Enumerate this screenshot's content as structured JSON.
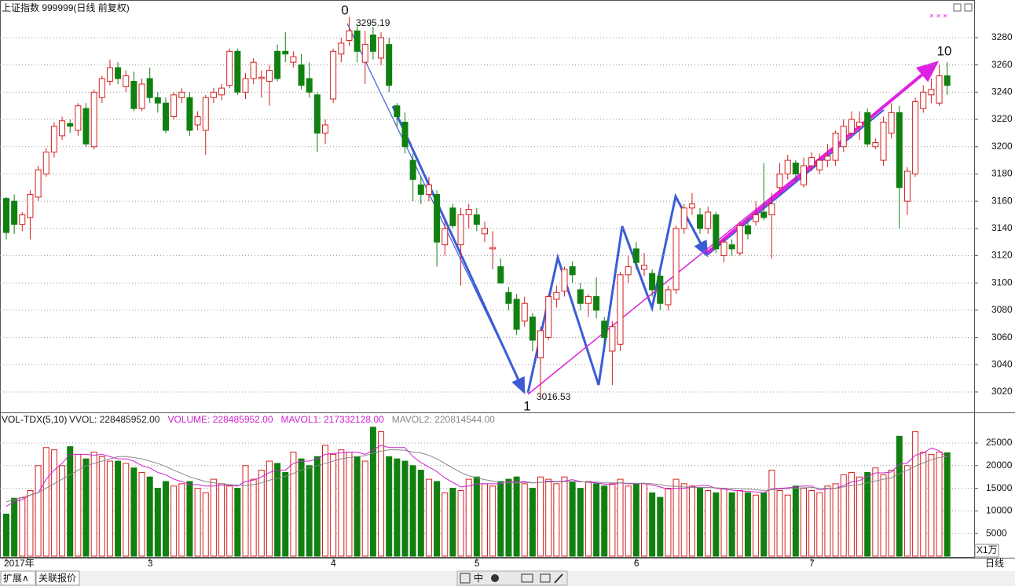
{
  "chart_data": [
    {
      "type": "candlestick",
      "title": "上证指数 999999(日线 前复权)",
      "x": [
        "2017年",
        null,
        null,
        null,
        null,
        null,
        null,
        null,
        null,
        null,
        null,
        null,
        null,
        null,
        null,
        null,
        null,
        null,
        "3",
        null,
        null,
        null,
        null,
        null,
        null,
        null,
        null,
        null,
        null,
        null,
        null,
        null,
        null,
        null,
        null,
        null,
        null,
        null,
        null,
        null,
        null,
        "4",
        null,
        null,
        null,
        null,
        null,
        null,
        null,
        null,
        null,
        null,
        null,
        null,
        null,
        null,
        null,
        null,
        null,
        "5",
        null,
        null,
        null,
        null,
        null,
        null,
        null,
        null,
        null,
        null,
        null,
        null,
        null,
        null,
        null,
        null,
        null,
        null,
        null,
        "6",
        null,
        null,
        null,
        null,
        null,
        null,
        null,
        null,
        null,
        null,
        null,
        null,
        null,
        null,
        null,
        null,
        null,
        null,
        null,
        null,
        null,
        "7",
        null,
        null,
        null,
        null,
        null,
        null,
        null,
        null,
        null,
        null,
        null,
        null,
        null,
        null,
        null,
        null,
        null
      ],
      "ohlc": [
        [
          3162,
          3163,
          3132,
          3137
        ],
        [
          3160,
          3165,
          3136,
          3143
        ],
        [
          3143,
          3152,
          3138,
          3150
        ],
        [
          3148,
          3168,
          3132,
          3165
        ],
        [
          3163,
          3186,
          3160,
          3183
        ],
        [
          3180,
          3199,
          3178,
          3196
        ],
        [
          3196,
          3218,
          3192,
          3215
        ],
        [
          3208,
          3222,
          3205,
          3219
        ],
        [
          3217,
          3220,
          3210,
          3215
        ],
        [
          3212,
          3232,
          3208,
          3230
        ],
        [
          3228,
          3232,
          3200,
          3202
        ],
        [
          3200,
          3242,
          3198,
          3240
        ],
        [
          3236,
          3252,
          3232,
          3250
        ],
        [
          3248,
          3264,
          3245,
          3258
        ],
        [
          3258,
          3262,
          3246,
          3250
        ],
        [
          3244,
          3256,
          3240,
          3252
        ],
        [
          3248,
          3255,
          3226,
          3228
        ],
        [
          3228,
          3250,
          3226,
          3246
        ],
        [
          3250,
          3258,
          3232,
          3236
        ],
        [
          3236,
          3240,
          3225,
          3232
        ],
        [
          3232,
          3236,
          3210,
          3212
        ],
        [
          3222,
          3240,
          3220,
          3238
        ],
        [
          3236,
          3243,
          3232,
          3240
        ],
        [
          3236,
          3240,
          3208,
          3212
        ],
        [
          3216,
          3226,
          3212,
          3222
        ],
        [
          3212,
          3238,
          3194,
          3236
        ],
        [
          3236,
          3243,
          3232,
          3240
        ],
        [
          3238,
          3246,
          3234,
          3243
        ],
        [
          3245,
          3272,
          3243,
          3270
        ],
        [
          3270,
          3272,
          3238,
          3240
        ],
        [
          3240,
          3254,
          3235,
          3250
        ],
        [
          3250,
          3265,
          3246,
          3262
        ],
        [
          3250,
          3256,
          3236,
          3251
        ],
        [
          3248,
          3260,
          3230,
          3256
        ],
        [
          3270,
          3275,
          3248,
          3250
        ],
        [
          3270,
          3284,
          3262,
          3268
        ],
        [
          3262,
          3270,
          3258,
          3266
        ],
        [
          3260,
          3268,
          3242,
          3245
        ],
        [
          3250,
          3262,
          3236,
          3240
        ],
        [
          3238,
          3240,
          3196,
          3210
        ],
        [
          3210,
          3220,
          3202,
          3216
        ],
        [
          3235,
          3272,
          3232,
          3270
        ],
        [
          3268,
          3280,
          3262,
          3276
        ],
        [
          3278,
          3295.19,
          3274,
          3285
        ],
        [
          3285,
          3290,
          3262,
          3270
        ],
        [
          3262,
          3285,
          3246,
          3275
        ],
        [
          3282,
          3288,
          3264,
          3270
        ],
        [
          3265,
          3284,
          3260,
          3280
        ],
        [
          3275,
          3280,
          3240,
          3245
        ],
        [
          3230,
          3232,
          3215,
          3222
        ],
        [
          3218,
          3225,
          3195,
          3200
        ],
        [
          3190,
          3195,
          3160,
          3176
        ],
        [
          3172,
          3178,
          3158,
          3165
        ],
        [
          3165,
          3178,
          3160,
          3172
        ],
        [
          3165,
          3168,
          3112,
          3130
        ],
        [
          3128,
          3145,
          3120,
          3140
        ],
        [
          3155,
          3158,
          3140,
          3142
        ],
        [
          3128,
          3155,
          3098,
          3150
        ],
        [
          3150,
          3158,
          3140,
          3154
        ],
        [
          3150,
          3155,
          3138,
          3143
        ],
        [
          3136,
          3145,
          3130,
          3140
        ],
        [
          3125,
          3138,
          3110,
          3126
        ],
        [
          3112,
          3118,
          3100,
          3100
        ],
        [
          3093,
          3097,
          3080,
          3085
        ],
        [
          3088,
          3092,
          3062,
          3066
        ],
        [
          3072,
          3090,
          3068,
          3085
        ],
        [
          3075,
          3078,
          3050,
          3058
        ],
        [
          3045,
          3068,
          3016.53,
          3065
        ],
        [
          3060,
          3092,
          3058,
          3090
        ],
        [
          3088,
          3098,
          3082,
          3093
        ],
        [
          3094,
          3112,
          3090,
          3110
        ],
        [
          3112,
          3116,
          3100,
          3106
        ],
        [
          3095,
          3100,
          3080,
          3085
        ],
        [
          3085,
          3092,
          3075,
          3090
        ],
        [
          3090,
          3104,
          3074,
          3080
        ],
        [
          3072,
          3075,
          3055,
          3060
        ],
        [
          3050,
          3072,
          3025,
          3068
        ],
        [
          3055,
          3108,
          3050,
          3106
        ],
        [
          3106,
          3120,
          3100,
          3112
        ],
        [
          3125,
          3130,
          3110,
          3115
        ],
        [
          3110,
          3122,
          3105,
          3113
        ],
        [
          3107,
          3110,
          3090,
          3095
        ],
        [
          3105,
          3108,
          3080,
          3085
        ],
        [
          3084,
          3098,
          3080,
          3095
        ],
        [
          3095,
          3142,
          3092,
          3140
        ],
        [
          3140,
          3158,
          3136,
          3155
        ],
        [
          3155,
          3166,
          3150,
          3158
        ],
        [
          3150,
          3155,
          3136,
          3140
        ],
        [
          3140,
          3156,
          3136,
          3152
        ],
        [
          3150,
          3152,
          3122,
          3125
        ],
        [
          3120,
          3133,
          3115,
          3130
        ],
        [
          3128,
          3132,
          3120,
          3125
        ],
        [
          3122,
          3145,
          3120,
          3142
        ],
        [
          3142,
          3148,
          3132,
          3136
        ],
        [
          3145,
          3160,
          3142,
          3150
        ],
        [
          3152,
          3188,
          3146,
          3148
        ],
        [
          3150,
          3166,
          3118,
          3158
        ],
        [
          3170,
          3188,
          3166,
          3180
        ],
        [
          3180,
          3194,
          3176,
          3190
        ],
        [
          3188,
          3190,
          3175,
          3180
        ],
        [
          3172,
          3192,
          3170,
          3186
        ],
        [
          3186,
          3196,
          3182,
          3192
        ],
        [
          3183,
          3195,
          3180,
          3190
        ],
        [
          3190,
          3202,
          3185,
          3193
        ],
        [
          3190,
          3212,
          3186,
          3210
        ],
        [
          3200,
          3220,
          3196,
          3215
        ],
        [
          3210,
          3226,
          3206,
          3220
        ],
        [
          3215,
          3226,
          3205,
          3218
        ],
        [
          3225,
          3228,
          3200,
          3202
        ],
        [
          3200,
          3206,
          3198,
          3203
        ],
        [
          3190,
          3222,
          3186,
          3218
        ],
        [
          3210,
          3232,
          3206,
          3225
        ],
        [
          3225,
          3230,
          3140,
          3170
        ],
        [
          3160,
          3185,
          3150,
          3182
        ],
        [
          3180,
          3236,
          3178,
          3233
        ],
        [
          3228,
          3245,
          3225,
          3240
        ],
        [
          3238,
          3250,
          3232,
          3242
        ],
        [
          3232,
          3260,
          3230,
          3252
        ],
        [
          3252,
          3262,
          3238,
          3245
        ]
      ],
      "ylim": [
        3005,
        3306.5
      ],
      "yticks": [
        3020,
        3040,
        3060,
        3080,
        3100,
        3120,
        3140,
        3160,
        3180,
        3200,
        3220,
        3240,
        3260,
        3280
      ],
      "up_color": "#d42020",
      "down_color": "#108010",
      "grid": true,
      "wave_labels": [
        "0",
        "1",
        "10"
      ],
      "price_labels": [
        3295.19,
        3016.53
      ]
    },
    {
      "type": "bar",
      "title": "VOL-TDX(5,10)",
      "readouts": [
        {
          "text": "VVOL: 228485952.00",
          "color": "#222222"
        },
        {
          "text": "VOLUME: 228485952.00",
          "color": "#d020d0"
        },
        {
          "text": "MAVOL1: 217332128.00",
          "color": "#d020d0"
        },
        {
          "text": "MAVOL2: 220814544.00",
          "color": "#888888"
        }
      ],
      "values": [
        9300,
        12800,
        12900,
        14500,
        20000,
        24000,
        23500,
        20000,
        24200,
        22500,
        21500,
        23000,
        22000,
        21000,
        21000,
        20500,
        19500,
        18500,
        17500,
        15000,
        16500,
        15500,
        16000,
        16500,
        15000,
        14000,
        17000,
        16000,
        15500,
        15000,
        20000,
        17000,
        19000,
        21000,
        20500,
        18500,
        23000,
        21500,
        20000,
        22000,
        24500,
        22500,
        23500,
        23000,
        22000,
        21000,
        28500,
        27500,
        22000,
        21500,
        21000,
        20000,
        19000,
        17000,
        16500,
        14000,
        15000,
        14500,
        17000,
        17500,
        16000,
        15500,
        16500,
        17000,
        17500,
        16000,
        15000,
        17500,
        17000,
        16000,
        17500,
        16500,
        15000,
        16500,
        16000,
        15500,
        16000,
        17000,
        15500,
        16000,
        16000,
        14000,
        13000,
        15000,
        17000,
        16000,
        15500,
        15000,
        14500,
        14000,
        15000,
        14000,
        14500,
        14000,
        13500,
        14000,
        19000,
        14500,
        13500,
        15500,
        15000,
        14500,
        14000,
        15500,
        16000,
        18000,
        18500,
        17500,
        18500,
        19500,
        18000,
        19000,
        26500,
        20000,
        27500,
        23000,
        22500,
        23000,
        22849
      ],
      "ma_lines": [
        {
          "color": "#d020d0",
          "values": [
            11000,
            12000,
            12500,
            13500,
            14000,
            17000,
            19000,
            20500,
            22500,
            22500,
            22500,
            22300,
            22500,
            22000,
            21500,
            21500,
            21000,
            20000,
            19500,
            18500,
            18000,
            17000,
            16500,
            15800,
            15800,
            15500,
            15500,
            15700,
            15700,
            15500,
            16500,
            16800,
            17500,
            18500,
            19000,
            19000,
            20500,
            21000,
            21000,
            21500,
            22500,
            22700,
            22800,
            23000,
            23000,
            22500,
            23500,
            24500,
            24000,
            24000,
            24000,
            22000,
            20700,
            19700,
            18700,
            17300,
            16300,
            15300,
            15500,
            16000,
            16000,
            16000,
            16000,
            16500,
            16500,
            16500,
            16200,
            16300,
            16600,
            16500,
            16600,
            16900,
            16500,
            16300,
            16200,
            15900,
            15800,
            16200,
            16000,
            16000,
            16100,
            15700,
            15300,
            14800,
            15000,
            15000,
            15300,
            15600,
            15600,
            15000,
            14800,
            14600,
            14400,
            14300,
            14200,
            14000,
            14900,
            15000,
            15100,
            15300,
            15500,
            15500,
            14600,
            14900,
            15000,
            15600,
            16400,
            16700,
            17600,
            18400,
            18400,
            18600,
            20300,
            20600,
            22300,
            22800,
            23900,
            23300,
            21733
          ]
        },
        {
          "color": "#888888",
          "values": [
            12000,
            12500,
            13000,
            13500,
            14000,
            15000,
            16000,
            17000,
            18000,
            19000,
            20000,
            20500,
            21000,
            21500,
            22000,
            22000,
            21800,
            21500,
            21000,
            20500,
            19800,
            19000,
            18300,
            17500,
            17000,
            16500,
            16200,
            16000,
            15800,
            15700,
            15600,
            15800,
            16200,
            16800,
            17200,
            17600,
            18300,
            19000,
            19500,
            20000,
            20500,
            21000,
            21500,
            21800,
            22000,
            22200,
            22800,
            23200,
            23500,
            23500,
            23400,
            23000,
            22800,
            22300,
            21500,
            20500,
            19500,
            18500,
            17800,
            17300,
            16900,
            16600,
            16300,
            16200,
            16200,
            16300,
            16200,
            16300,
            16400,
            16400,
            16500,
            16500,
            16400,
            16400,
            16400,
            16200,
            16200,
            16200,
            16100,
            16100,
            16100,
            16000,
            15800,
            15500,
            15400,
            15300,
            15200,
            15200,
            15200,
            15100,
            15000,
            14900,
            14900,
            14800,
            14700,
            14500,
            14700,
            14800,
            14900,
            15000,
            15100,
            15200,
            15000,
            15000,
            15000,
            15300,
            15600,
            15800,
            16200,
            16600,
            17000,
            17300,
            18200,
            19000,
            19900,
            20600,
            21300,
            21800,
            22081
          ]
        }
      ],
      "ylim": [
        0,
        28300
      ],
      "yticks": [
        5000,
        10000,
        15000,
        20000,
        25000
      ],
      "grid": true,
      "unit_label": "X1万"
    }
  ],
  "footer": {
    "tabs": [
      "扩展∧",
      "关联报价"
    ],
    "toolbar_text": "中",
    "period": "日线"
  }
}
